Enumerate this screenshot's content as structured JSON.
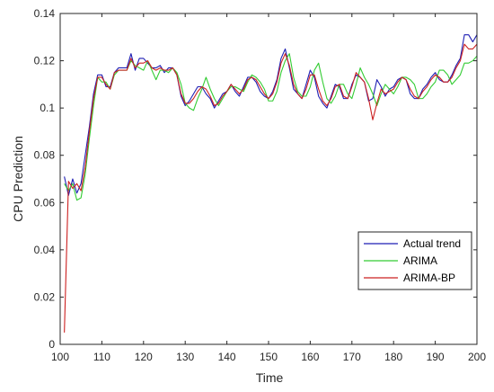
{
  "chart_data": {
    "type": "line",
    "title": "",
    "xlabel": "Time",
    "ylabel": "CPU Prediction",
    "xlim": [
      100,
      200
    ],
    "ylim": [
      0,
      0.14
    ],
    "xticks": [
      100,
      110,
      120,
      130,
      140,
      150,
      160,
      170,
      180,
      190,
      200
    ],
    "xtick_labels": [
      "100",
      "110",
      "120",
      "130",
      "140",
      "150",
      "160",
      "170",
      "180",
      "190",
      "200"
    ],
    "yticks": [
      0,
      0.02,
      0.04,
      0.06,
      0.08,
      0.1,
      0.12,
      0.14
    ],
    "ytick_labels": [
      "0",
      "0.02",
      "0.04",
      "0.06",
      "0.08",
      "0.1",
      "0.12",
      "0.14"
    ],
    "grid": false,
    "legend_position": "bottom-right",
    "series": [
      {
        "name": "Actual trend",
        "color": "#1f1fb4",
        "x": [
          101,
          102,
          103,
          104,
          105,
          106,
          107,
          108,
          109,
          110,
          111,
          112,
          113,
          114,
          115,
          116,
          117,
          118,
          119,
          120,
          121,
          122,
          123,
          124,
          125,
          126,
          127,
          128,
          129,
          130,
          131,
          132,
          133,
          134,
          135,
          136,
          137,
          138,
          139,
          140,
          141,
          142,
          143,
          144,
          145,
          146,
          147,
          148,
          149,
          150,
          151,
          152,
          153,
          154,
          155,
          156,
          157,
          158,
          159,
          160,
          161,
          162,
          163,
          164,
          165,
          166,
          167,
          168,
          169,
          170,
          171,
          172,
          173,
          174,
          175,
          176,
          177,
          178,
          179,
          180,
          181,
          182,
          183,
          184,
          185,
          186,
          187,
          188,
          189,
          190,
          191,
          192,
          193,
          194,
          195,
          196,
          197,
          198,
          199,
          200
        ],
        "values": [
          0.071,
          0.063,
          0.07,
          0.064,
          0.068,
          0.08,
          0.092,
          0.106,
          0.114,
          0.114,
          0.109,
          0.109,
          0.115,
          0.117,
          0.117,
          0.117,
          0.123,
          0.116,
          0.121,
          0.121,
          0.119,
          0.117,
          0.117,
          0.118,
          0.115,
          0.117,
          0.117,
          0.114,
          0.105,
          0.101,
          0.103,
          0.106,
          0.109,
          0.109,
          0.106,
          0.104,
          0.1,
          0.103,
          0.106,
          0.107,
          0.11,
          0.107,
          0.105,
          0.109,
          0.113,
          0.113,
          0.111,
          0.107,
          0.105,
          0.104,
          0.107,
          0.112,
          0.121,
          0.125,
          0.117,
          0.108,
          0.106,
          0.104,
          0.11,
          0.116,
          0.113,
          0.105,
          0.102,
          0.1,
          0.105,
          0.11,
          0.109,
          0.104,
          0.104,
          0.11,
          0.114,
          0.113,
          0.111,
          0.103,
          0.104,
          0.112,
          0.109,
          0.105,
          0.108,
          0.109,
          0.112,
          0.113,
          0.112,
          0.106,
          0.104,
          0.104,
          0.108,
          0.11,
          0.113,
          0.115,
          0.112,
          0.111,
          0.111,
          0.114,
          0.118,
          0.121,
          0.131,
          0.131,
          0.128,
          0.131
        ]
      },
      {
        "name": "ARIMA",
        "color": "#33cc33",
        "x": [
          101,
          102,
          103,
          104,
          105,
          106,
          107,
          108,
          109,
          110,
          111,
          112,
          113,
          114,
          115,
          116,
          117,
          118,
          119,
          120,
          121,
          122,
          123,
          124,
          125,
          126,
          127,
          128,
          129,
          130,
          131,
          132,
          133,
          134,
          135,
          136,
          137,
          138,
          139,
          140,
          141,
          142,
          143,
          144,
          145,
          146,
          147,
          148,
          149,
          150,
          151,
          152,
          153,
          154,
          155,
          156,
          157,
          158,
          159,
          160,
          161,
          162,
          163,
          164,
          165,
          166,
          167,
          168,
          169,
          170,
          171,
          172,
          173,
          174,
          175,
          176,
          177,
          178,
          179,
          180,
          181,
          182,
          183,
          184,
          185,
          186,
          187,
          188,
          189,
          190,
          191,
          192,
          193,
          194,
          195,
          196,
          197,
          198,
          199,
          200
        ],
        "values": [
          0.068,
          0.065,
          0.068,
          0.061,
          0.062,
          0.072,
          0.087,
          0.101,
          0.113,
          0.111,
          0.111,
          0.108,
          0.114,
          0.116,
          0.116,
          0.116,
          0.12,
          0.118,
          0.117,
          0.116,
          0.12,
          0.116,
          0.112,
          0.116,
          0.116,
          0.115,
          0.117,
          0.115,
          0.11,
          0.102,
          0.1,
          0.099,
          0.104,
          0.108,
          0.113,
          0.108,
          0.104,
          0.101,
          0.104,
          0.107,
          0.109,
          0.109,
          0.108,
          0.107,
          0.111,
          0.114,
          0.113,
          0.111,
          0.108,
          0.103,
          0.103,
          0.107,
          0.115,
          0.12,
          0.123,
          0.113,
          0.107,
          0.105,
          0.105,
          0.109,
          0.116,
          0.119,
          0.111,
          0.104,
          0.102,
          0.105,
          0.11,
          0.11,
          0.106,
          0.104,
          0.11,
          0.117,
          0.113,
          0.11,
          0.106,
          0.101,
          0.106,
          0.11,
          0.108,
          0.106,
          0.109,
          0.113,
          0.113,
          0.112,
          0.11,
          0.104,
          0.104,
          0.106,
          0.109,
          0.111,
          0.116,
          0.116,
          0.114,
          0.11,
          0.112,
          0.114,
          0.119,
          0.119,
          0.12,
          0.122
        ]
      },
      {
        "name": "ARIMA-BP",
        "color": "#cc2020",
        "x": [
          101,
          102,
          103,
          104,
          105,
          106,
          107,
          108,
          109,
          110,
          111,
          112,
          113,
          114,
          115,
          116,
          117,
          118,
          119,
          120,
          121,
          122,
          123,
          124,
          125,
          126,
          127,
          128,
          129,
          130,
          131,
          132,
          133,
          134,
          135,
          136,
          137,
          138,
          139,
          140,
          141,
          142,
          143,
          144,
          145,
          146,
          147,
          148,
          149,
          150,
          151,
          152,
          153,
          154,
          155,
          156,
          157,
          158,
          159,
          160,
          161,
          162,
          163,
          164,
          165,
          166,
          167,
          168,
          169,
          170,
          171,
          172,
          173,
          174,
          175,
          176,
          177,
          178,
          179,
          180,
          181,
          182,
          183,
          184,
          185,
          186,
          187,
          188,
          189,
          190,
          191,
          192,
          193,
          194,
          195,
          196,
          197,
          198,
          199,
          200
        ],
        "values": [
          0.005,
          0.069,
          0.066,
          0.068,
          0.065,
          0.075,
          0.09,
          0.104,
          0.113,
          0.113,
          0.11,
          0.108,
          0.115,
          0.116,
          0.116,
          0.116,
          0.121,
          0.117,
          0.119,
          0.119,
          0.12,
          0.117,
          0.116,
          0.117,
          0.116,
          0.116,
          0.117,
          0.114,
          0.106,
          0.102,
          0.102,
          0.104,
          0.107,
          0.109,
          0.108,
          0.105,
          0.101,
          0.102,
          0.105,
          0.107,
          0.11,
          0.108,
          0.106,
          0.108,
          0.112,
          0.113,
          0.112,
          0.109,
          0.106,
          0.104,
          0.106,
          0.111,
          0.119,
          0.123,
          0.118,
          0.11,
          0.106,
          0.104,
          0.108,
          0.114,
          0.114,
          0.108,
          0.103,
          0.101,
          0.104,
          0.109,
          0.11,
          0.105,
          0.104,
          0.109,
          0.115,
          0.113,
          0.111,
          0.104,
          0.095,
          0.102,
          0.108,
          0.106,
          0.107,
          0.108,
          0.111,
          0.113,
          0.112,
          0.108,
          0.105,
          0.104,
          0.107,
          0.109,
          0.112,
          0.114,
          0.113,
          0.111,
          0.111,
          0.113,
          0.117,
          0.12,
          0.127,
          0.125,
          0.125,
          0.127
        ]
      }
    ]
  }
}
